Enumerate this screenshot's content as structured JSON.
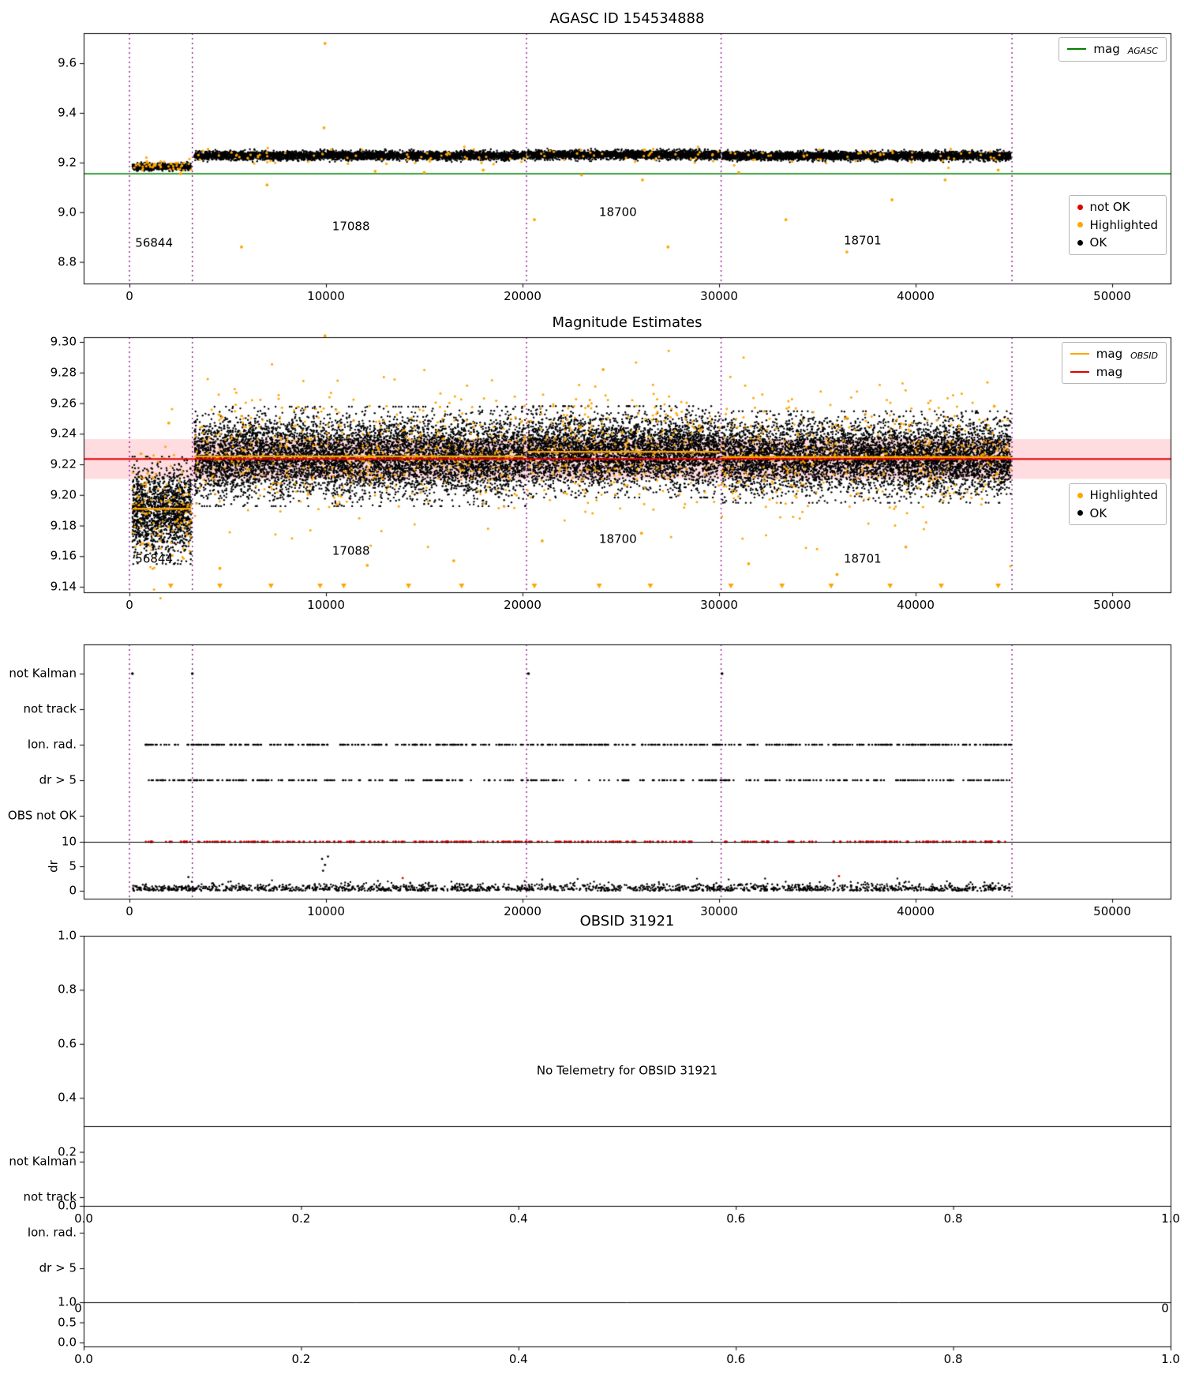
{
  "colors": {
    "black": "#000000",
    "orange": "#ffa500",
    "red": "#e00000",
    "green": "#008000",
    "purple": "#8b008b",
    "band_fill": "rgba(255,60,80,0.18)"
  },
  "chart_data": [
    {
      "type": "scatter",
      "title": "AGASC ID 154534888",
      "xlim": [
        -2330,
        52970
      ],
      "ylim": [
        8.713,
        9.721
      ],
      "xticks": [
        {
          "v": 0,
          "label": "0"
        },
        {
          "v": 10000,
          "label": "10000"
        },
        {
          "v": 20000,
          "label": "20000"
        },
        {
          "v": 30000,
          "label": "30000"
        },
        {
          "v": 40000,
          "label": "40000"
        },
        {
          "v": 50000,
          "label": "50000"
        }
      ],
      "yticks": [
        {
          "v": 8.8,
          "label": "8.8"
        },
        {
          "v": 9.0,
          "label": "9.0"
        },
        {
          "v": 9.2,
          "label": "9.2"
        },
        {
          "v": 9.4,
          "label": "9.4"
        },
        {
          "v": 9.6,
          "label": "9.6"
        }
      ],
      "vlines": [
        0,
        3200,
        20200,
        30100,
        44900
      ],
      "hline": {
        "y": 9.155
      },
      "clusters": [
        {
          "x0": 150,
          "x1": 3150,
          "mean": 9.183,
          "std": 0.007,
          "n": 600
        },
        {
          "x0": 3300,
          "x1": 20150,
          "mean": 9.228,
          "std": 0.0085,
          "n": 4200
        },
        {
          "x0": 20250,
          "x1": 30050,
          "mean": 9.231,
          "std": 0.0085,
          "n": 2600
        },
        {
          "x0": 30150,
          "x1": 44850,
          "mean": 9.227,
          "std": 0.0085,
          "n": 3800
        }
      ],
      "highlight_clusters": [
        {
          "x0": 150,
          "x1": 3150,
          "mean": 9.19,
          "std": 0.012,
          "n": 45
        },
        {
          "x0": 3300,
          "x1": 44850,
          "mean": 9.226,
          "std": 0.016,
          "n": 140
        }
      ],
      "highlight_outliers": [
        [
          9950,
          9.68
        ],
        [
          9900,
          9.34
        ],
        [
          5700,
          8.86
        ],
        [
          20600,
          8.97
        ],
        [
          27400,
          8.86
        ],
        [
          33400,
          8.97
        ],
        [
          38800,
          9.05
        ],
        [
          26100,
          9.13
        ],
        [
          36500,
          8.84
        ],
        [
          15000,
          9.16
        ],
        [
          7000,
          9.11
        ],
        [
          41500,
          9.13
        ],
        [
          44200,
          9.17
        ],
        [
          2600,
          9.155
        ],
        [
          31000,
          9.16
        ],
        [
          23000,
          9.15
        ],
        [
          12500,
          9.165
        ],
        [
          18000,
          9.17
        ]
      ],
      "not_ok_points": [],
      "annotations": [
        {
          "text": "56844",
          "x": 1250,
          "y": 8.875
        },
        {
          "text": "17088",
          "x": 11270,
          "y": 8.942
        },
        {
          "text": "18700",
          "x": 24850,
          "y": 9.0
        },
        {
          "text": "18701",
          "x": 37300,
          "y": 8.885
        }
      ],
      "legend_line": {
        "items": [
          {
            "type": "line",
            "color": "green",
            "label": "mag",
            "sublabel": "AGASC"
          }
        ]
      },
      "legend_markers": {
        "items": [
          {
            "type": "dot",
            "color": "red",
            "label": "not OK"
          },
          {
            "type": "dot",
            "color": "orange",
            "label": "Highlighted"
          },
          {
            "type": "dot",
            "color": "black",
            "label": "OK"
          }
        ]
      }
    },
    {
      "type": "scatter",
      "title": "Magnitude Estimates",
      "xlim": [
        -2330,
        52970
      ],
      "ylim": [
        9.1364,
        9.3031
      ],
      "xticks": [
        {
          "v": 0,
          "label": "0"
        },
        {
          "v": 10000,
          "label": "10000"
        },
        {
          "v": 20000,
          "label": "20000"
        },
        {
          "v": 30000,
          "label": "30000"
        },
        {
          "v": 40000,
          "label": "40000"
        },
        {
          "v": 50000,
          "label": "50000"
        }
      ],
      "yticks": [
        {
          "v": 9.14,
          "label": "9.14"
        },
        {
          "v": 9.16,
          "label": "9.16"
        },
        {
          "v": 9.18,
          "label": "9.18"
        },
        {
          "v": 9.2,
          "label": "9.20"
        },
        {
          "v": 9.22,
          "label": "9.22"
        },
        {
          "v": 9.24,
          "label": "9.24"
        },
        {
          "v": 9.26,
          "label": "9.26"
        },
        {
          "v": 9.28,
          "label": "9.28"
        },
        {
          "v": 9.3,
          "label": "9.30"
        }
      ],
      "vlines": [
        0,
        3200,
        20200,
        30100,
        44900
      ],
      "band": {
        "y0": 9.2105,
        "y1": 9.2365
      },
      "mag_line": 9.2235,
      "step_segments": [
        [
          150,
          3150,
          9.191
        ],
        [
          3300,
          20150,
          9.2252
        ],
        [
          20250,
          30050,
          9.2282
        ],
        [
          30150,
          44850,
          9.2248
        ]
      ],
      "clusters": [
        {
          "x0": 150,
          "x1": 3150,
          "mean": 9.19,
          "std": 0.0135,
          "n": 1600
        },
        {
          "x0": 3300,
          "x1": 20150,
          "mean": 9.2252,
          "std": 0.0125,
          "n": 7000
        },
        {
          "x0": 20250,
          "x1": 30050,
          "mean": 9.2282,
          "std": 0.0115,
          "n": 4200
        },
        {
          "x0": 30150,
          "x1": 44850,
          "mean": 9.2248,
          "std": 0.0115,
          "n": 6000
        }
      ],
      "highlight_clusters": [
        {
          "x0": 150,
          "x1": 3150,
          "mean": 9.19,
          "std": 0.02,
          "n": 120
        },
        {
          "x0": 3300,
          "x1": 20150,
          "mean": 9.2252,
          "std": 0.021,
          "n": 420
        },
        {
          "x0": 20250,
          "x1": 30050,
          "mean": 9.2282,
          "std": 0.02,
          "n": 250
        },
        {
          "x0": 30150,
          "x1": 44850,
          "mean": 9.2248,
          "std": 0.02,
          "n": 360
        }
      ],
      "highlight_outliers": [
        [
          9950,
          9.304
        ],
        [
          24100,
          9.282
        ],
        [
          4600,
          9.152
        ],
        [
          12100,
          9.154
        ],
        [
          21000,
          9.17
        ],
        [
          26050,
          9.175
        ],
        [
          31500,
          9.155
        ],
        [
          36000,
          9.148
        ],
        [
          44000,
          9.258
        ],
        [
          600,
          9.168
        ],
        [
          2000,
          9.247
        ],
        [
          16500,
          9.157
        ],
        [
          39500,
          9.166
        ]
      ],
      "triangles_x": [
        2100,
        4600,
        7200,
        9700,
        10900,
        14200,
        16900,
        20600,
        23900,
        26500,
        30600,
        33200,
        35700,
        38700,
        41300,
        44200
      ],
      "triangles_y": 9.1405,
      "annotations": [
        {
          "text": "56844",
          "x": 1250,
          "y": 9.158
        },
        {
          "text": "17088",
          "x": 11270,
          "y": 9.163
        },
        {
          "text": "18700",
          "x": 24850,
          "y": 9.171
        },
        {
          "text": "18701",
          "x": 37300,
          "y": 9.158
        }
      ],
      "legend_line": {
        "items": [
          {
            "type": "line",
            "color": "orange",
            "label": "mag",
            "sublabel": "OBSID"
          },
          {
            "type": "line",
            "color": "red",
            "label": "mag",
            "sublabel": ""
          }
        ]
      },
      "legend_markers": {
        "items": [
          {
            "type": "dot",
            "color": "orange",
            "label": "Highlighted"
          },
          {
            "type": "dot",
            "color": "black",
            "label": "OK"
          }
        ]
      }
    },
    {
      "type": "flags",
      "xlim": [
        -2330,
        52970
      ],
      "xticks": [
        {
          "v": 0,
          "label": "0"
        },
        {
          "v": 10000,
          "label": "10000"
        },
        {
          "v": 20000,
          "label": "20000"
        },
        {
          "v": 30000,
          "label": "30000"
        },
        {
          "v": 40000,
          "label": "40000"
        },
        {
          "v": 50000,
          "label": "50000"
        }
      ],
      "vlines": [
        0,
        3200,
        20200,
        30100,
        44900
      ],
      "rows": [
        "not Kalman",
        "not track",
        "Ion. rad.",
        "dr > 5",
        "OBS not OK"
      ],
      "flag_points": [
        {
          "row": 0,
          "points_x": [
            150,
            3200,
            20300,
            30150
          ]
        },
        {
          "row": 2,
          "random": {
            "n": 550,
            "x0": 800,
            "x1": 44850
          }
        },
        {
          "row": 3,
          "random": {
            "n": 380,
            "x0": 800,
            "x1": 44850
          }
        }
      ],
      "dr": {
        "ylabel": "dr",
        "ticks": [
          {
            "v": 0,
            "label": "0"
          },
          {
            "v": 5,
            "label": "5"
          },
          {
            "v": 10,
            "label": "10"
          }
        ],
        "clipped_red": {
          "n": 420,
          "x0": 800,
          "x1": 44850
        },
        "low_black": {
          "n": 1600,
          "x0": 150,
          "x1": 44850,
          "scale": 0.7
        },
        "mid_black": [
          [
            9800,
            6.5
          ],
          [
            9950,
            5.3
          ],
          [
            10100,
            7.0
          ],
          [
            9850,
            4.1
          ],
          [
            21000,
            2.3
          ],
          [
            35800,
            2.1
          ],
          [
            3000,
            2.8
          ]
        ],
        "mid_red": [
          [
            13900,
            2.6
          ],
          [
            36100,
            3.0
          ]
        ]
      }
    },
    {
      "type": "empty",
      "title": "OBSID 31921",
      "message": "No Telemetry for OBSID 31921",
      "xticks": [
        {
          "v": 0,
          "label": "0.0"
        },
        {
          "v": 0.2,
          "label": "0.2"
        },
        {
          "v": 0.4,
          "label": "0.4"
        },
        {
          "v": 0.6,
          "label": "0.6"
        },
        {
          "v": 0.8,
          "label": "0.8"
        },
        {
          "v": 1,
          "label": "1.0"
        }
      ],
      "yticks": [
        {
          "v": 0,
          "label": "0.0"
        },
        {
          "v": 0.2,
          "label": "0.2"
        },
        {
          "v": 0.4,
          "label": "0.4"
        },
        {
          "v": 0.6,
          "label": "0.6"
        },
        {
          "v": 0.8,
          "label": "0.8"
        },
        {
          "v": 1,
          "label": "1.0"
        }
      ]
    },
    {
      "type": "flags-empty",
      "rows": [
        "not Kalman",
        "not track",
        "Ion. rad.",
        "dr > 5"
      ],
      "dr_ticks": [
        {
          "v": 1,
          "label": "1.0"
        },
        {
          "v": 0.5,
          "label": "0.5"
        },
        {
          "v": 0,
          "label": "0.0"
        }
      ],
      "xticks": [
        {
          "v": 0,
          "label": "0.0"
        },
        {
          "v": 0.2,
          "label": "0.2"
        },
        {
          "v": 0.4,
          "label": "0.4"
        },
        {
          "v": 0.6,
          "label": "0.6"
        },
        {
          "v": 0.8,
          "label": "0.8"
        },
        {
          "v": 1,
          "label": "1.0"
        }
      ],
      "edge_labels": [
        "0",
        "0"
      ]
    }
  ]
}
